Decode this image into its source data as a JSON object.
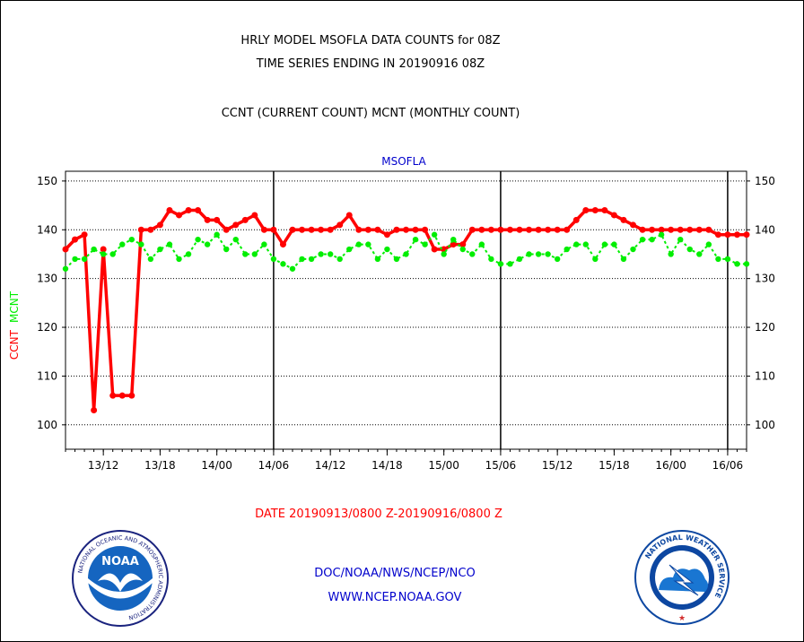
{
  "header": {
    "title_line1": "HRLY MODEL MSOFLA DATA COUNTS for 08Z",
    "title_line2": "TIME SERIES ENDING IN 20190916 08Z",
    "subtitle": "CCNT (CURRENT COUNT) MCNT (MONTHLY COUNT)"
  },
  "footer": {
    "date_range": "DATE 20190913/0800 Z-20190916/0800 Z",
    "org": "DOC/NOAA/NWS/NCEP/NCO",
    "url": "WWW.NCEP.NOAA.GOV"
  },
  "logos": {
    "left_text": "NOAA",
    "left_ring_text": "NATIONAL OCEANIC AND ATMOSPHERIC ADMINISTRATION",
    "left_bottom_text": "U.S. DEPARTMENT OF COMMERCE",
    "right_ring_text": "NATIONAL WEATHER SERVICE"
  },
  "colors": {
    "ccnt": "#ff0000",
    "mcnt": "#00ee00",
    "text": "#000000",
    "chart_label": "#0000cc",
    "footer_red": "#ff0000",
    "footer_blue": "#0000cc"
  },
  "chart_data": {
    "type": "line",
    "title": "MSOFLA",
    "ylabel_ccnt": "CCNT",
    "ylabel_mcnt": "MCNT",
    "ylim": [
      95,
      152
    ],
    "yticks": [
      100,
      110,
      120,
      130,
      140,
      150
    ],
    "x_start_hour": 8,
    "x_end_hour": 80,
    "xtick_labels": [
      "13/12",
      "13/18",
      "14/00",
      "14/06",
      "14/12",
      "14/18",
      "15/00",
      "15/06",
      "15/12",
      "15/18",
      "16/00",
      "16/06"
    ],
    "xtick_hours": [
      12,
      18,
      24,
      30,
      36,
      42,
      48,
      54,
      60,
      66,
      72,
      78
    ],
    "day_boundaries": [
      30,
      54,
      78
    ],
    "grid": "horizontal dotted",
    "series": [
      {
        "name": "CCNT",
        "values": [
          136,
          138,
          139,
          103,
          136,
          106,
          106,
          106,
          140,
          140,
          141,
          144,
          143,
          144,
          144,
          142,
          142,
          140,
          141,
          142,
          143,
          140,
          140,
          137,
          140,
          140,
          140,
          140,
          140,
          141,
          143,
          140,
          140,
          140,
          139,
          140,
          140,
          140,
          140,
          136,
          136,
          137,
          137,
          140,
          140,
          140,
          140,
          140,
          140,
          140,
          140,
          140,
          140,
          140,
          142,
          144,
          144,
          144,
          143,
          142,
          141,
          140,
          140,
          140,
          140,
          140,
          140,
          140,
          140,
          139,
          139,
          139,
          139
        ]
      },
      {
        "name": "MCNT",
        "values": [
          132,
          134,
          134,
          136,
          135,
          135,
          137,
          138,
          137,
          134,
          136,
          137,
          134,
          135,
          138,
          137,
          139,
          136,
          138,
          135,
          135,
          137,
          134,
          133,
          132,
          134,
          134,
          135,
          135,
          134,
          136,
          137,
          137,
          134,
          136,
          134,
          135,
          138,
          137,
          139,
          135,
          138,
          136,
          135,
          137,
          134,
          133,
          133,
          134,
          135,
          135,
          135,
          134,
          136,
          137,
          137,
          134,
          137,
          137,
          134,
          136,
          138,
          138,
          139,
          135,
          138,
          136,
          135,
          137,
          134,
          134,
          133,
          133
        ]
      }
    ]
  }
}
